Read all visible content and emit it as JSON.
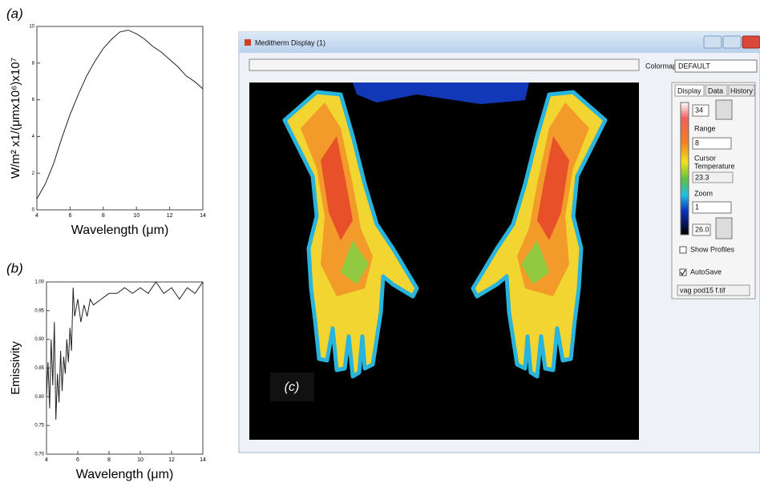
{
  "chart_data": [
    {
      "type": "line",
      "panel_label": "(a)",
      "ylabel": "W/m² x1/(μmx10⁶)x10⁷",
      "xlabel": "Wavelength (μm)",
      "x": [
        4,
        4.5,
        5,
        5.5,
        6,
        6.5,
        7,
        7.5,
        8,
        8.5,
        9,
        9.5,
        10,
        10.5,
        11,
        11.5,
        12,
        12.5,
        13,
        13.5,
        14
      ],
      "values": [
        0.6,
        1.4,
        2.5,
        3.9,
        5.2,
        6.3,
        7.3,
        8.1,
        8.8,
        9.3,
        9.7,
        9.8,
        9.6,
        9.3,
        8.9,
        8.6,
        8.2,
        7.8,
        7.3,
        7.0,
        6.6
      ],
      "color": "#222222",
      "xlim": [
        4,
        14
      ],
      "ylim": [
        0,
        10
      ],
      "xticks": [
        4,
        6,
        8,
        10,
        12,
        14
      ],
      "yticks": [
        0,
        2,
        4,
        6,
        8,
        10
      ]
    },
    {
      "type": "line",
      "panel_label": "(b)",
      "ylabel": "Emissivity",
      "xlabel": "Wavelength (μm)",
      "x": [
        4.0,
        4.1,
        4.2,
        4.3,
        4.4,
        4.5,
        4.6,
        4.7,
        4.8,
        4.9,
        5.0,
        5.1,
        5.2,
        5.3,
        5.4,
        5.5,
        5.6,
        5.7,
        5.8,
        6.0,
        6.2,
        6.4,
        6.6,
        6.8,
        7.0,
        7.5,
        8.0,
        8.5,
        9.0,
        9.5,
        10.0,
        10.5,
        11.0,
        11.5,
        12.0,
        12.5,
        13.0,
        13.5,
        14.0
      ],
      "values": [
        0.8,
        0.86,
        0.78,
        0.9,
        0.82,
        0.93,
        0.76,
        0.84,
        0.79,
        0.88,
        0.81,
        0.87,
        0.84,
        0.9,
        0.86,
        0.92,
        0.88,
        0.99,
        0.94,
        0.97,
        0.93,
        0.96,
        0.94,
        0.97,
        0.96,
        0.97,
        0.98,
        0.98,
        0.99,
        0.98,
        0.99,
        0.98,
        1.0,
        0.98,
        0.99,
        0.97,
        0.99,
        0.98,
        1.0
      ],
      "color": "#222222",
      "xlim": [
        4,
        14
      ],
      "ylim": [
        0.7,
        1.0
      ],
      "xticks": [
        4,
        6,
        8,
        10,
        12,
        14
      ],
      "yticks": [
        {
          "value": 0.7,
          "label": "0.70"
        },
        0.75,
        {
          "value": 0.8,
          "label": "0.80"
        },
        0.85,
        {
          "value": 0.9,
          "label": "0.90"
        },
        0.95,
        {
          "value": 1.0,
          "label": "1.00"
        }
      ]
    }
  ],
  "screenshot": {
    "panel_label": "(c)",
    "window_title": "Meditherm Display (1)",
    "colormap_label": "Colormap",
    "colormap_value": "DEFAULT",
    "tabs": [
      "Display",
      "Data",
      "History"
    ],
    "max_temp": "34",
    "range_label": "Range",
    "range_value": "8",
    "cursor_label": "Cursor",
    "cursor_label_2": "Temperature",
    "cursor_value": "23.3",
    "zoom_label": "Zoom",
    "zoom_value": "1",
    "min_temp": "26.0",
    "show_profiles": "Show Profiles",
    "autosave": "AutoSave",
    "filename": "vag pod15 f.tif"
  }
}
